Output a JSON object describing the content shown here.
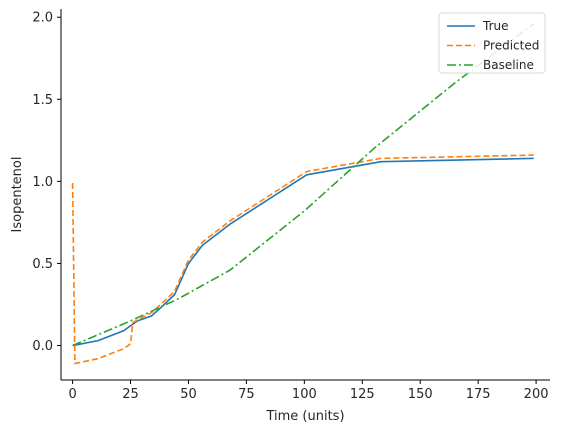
{
  "chart_data": {
    "type": "line",
    "title": "",
    "xlabel": "Time (units)",
    "ylabel": "Isopentenol",
    "xlim": [
      -5,
      206
    ],
    "ylim": [
      -0.21,
      2.05
    ],
    "xticks": [
      0,
      25,
      50,
      75,
      100,
      125,
      150,
      175,
      200
    ],
    "yticks": [
      0.0,
      0.5,
      1.0,
      1.5,
      2.0
    ],
    "xtick_labels": [
      "0",
      "25",
      "50",
      "75",
      "100",
      "125",
      "150",
      "175",
      "200"
    ],
    "ytick_labels": [
      "0.0",
      "0.5",
      "1.0",
      "1.5",
      "2.0"
    ],
    "grid": false,
    "legend_position": "top-right",
    "series": [
      {
        "name": "True",
        "color": "#1f77b4",
        "style": "solid",
        "x": [
          0,
          11,
          22,
          28,
          34,
          38,
          44,
          50,
          56,
          68,
          101,
          133,
          199
        ],
        "y": [
          0.0,
          0.03,
          0.09,
          0.15,
          0.18,
          0.23,
          0.31,
          0.5,
          0.61,
          0.74,
          1.04,
          1.12,
          1.14
        ]
      },
      {
        "name": "Predicted",
        "color": "#ff7f0e",
        "style": "dashed",
        "x": [
          0,
          1,
          11,
          22,
          25,
          26,
          34,
          38,
          44,
          50,
          56,
          68,
          101,
          133,
          199
        ],
        "y": [
          0.99,
          -0.11,
          -0.08,
          -0.02,
          0.01,
          0.14,
          0.2,
          0.25,
          0.33,
          0.52,
          0.63,
          0.76,
          1.06,
          1.14,
          1.16
        ]
      },
      {
        "name": "Baseline",
        "color": "#2ca02c",
        "style": "dashdot",
        "x": [
          0,
          25,
          45,
          68,
          100,
          130,
          165,
          199
        ],
        "y": [
          0.0,
          0.15,
          0.28,
          0.46,
          0.82,
          1.2,
          1.6,
          1.96
        ]
      }
    ]
  }
}
